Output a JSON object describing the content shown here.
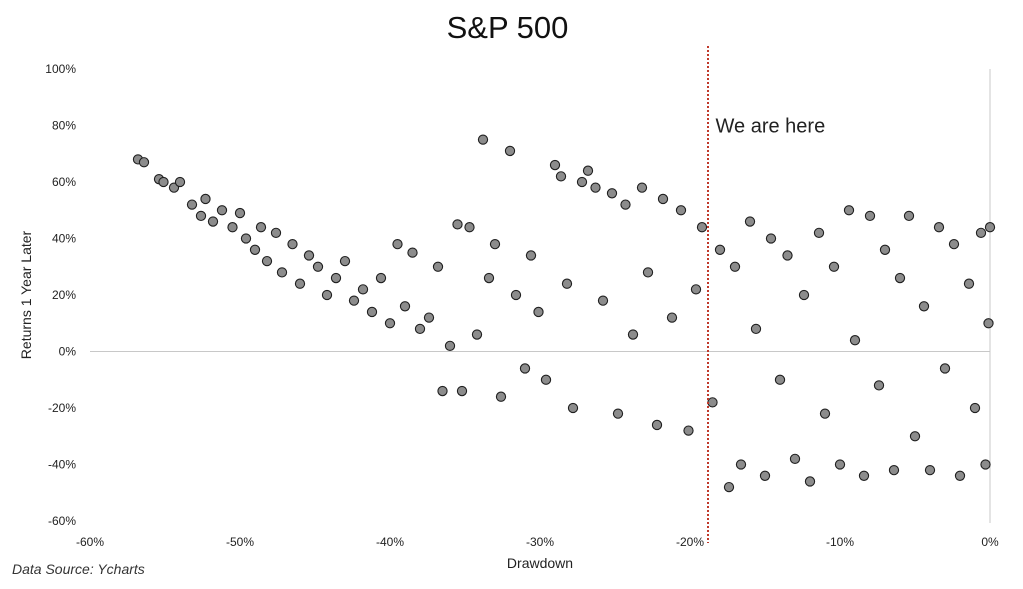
{
  "chart_data": {
    "type": "scatter",
    "title": "S&P 500",
    "xlabel": "Drawdown",
    "ylabel": "Returns 1 Year Later",
    "xlim": [
      -60,
      0
    ],
    "ylim": [
      -60,
      100
    ],
    "x_ticks": [
      "-60%",
      "-50%",
      "-40%",
      "-30%",
      "-20%",
      "-10%",
      "0%"
    ],
    "y_ticks": [
      "100%",
      "80%",
      "60%",
      "40%",
      "20%",
      "0%",
      "-20%",
      "-40%",
      "-60%"
    ],
    "x_tick_values": [
      -60,
      -50,
      -40,
      -30,
      -20,
      -10,
      0
    ],
    "y_tick_values": [
      100,
      80,
      60,
      40,
      20,
      0,
      -20,
      -40,
      -60
    ],
    "grid": false,
    "marker_color": "#8c8c8c",
    "marker_edge_color": "#1f1f1f",
    "reference_line": {
      "x": -18.8,
      "color": "#c0392b",
      "style": "dotted"
    },
    "annotation": {
      "text": "We are here",
      "x": -18.3,
      "y": 80
    },
    "series": [
      {
        "points": [
          [
            -56.8,
            68
          ],
          [
            -56.4,
            67
          ],
          [
            -55.4,
            61
          ],
          [
            -55.1,
            60
          ],
          [
            -54.4,
            58
          ],
          [
            -54.0,
            60
          ],
          [
            -53.2,
            52
          ],
          [
            -52.6,
            48
          ],
          [
            -52.3,
            54
          ],
          [
            -51.8,
            46
          ],
          [
            -51.2,
            50
          ],
          [
            -50.5,
            44
          ],
          [
            -50.0,
            49
          ],
          [
            -49.6,
            40
          ],
          [
            -49.0,
            36
          ],
          [
            -48.6,
            44
          ],
          [
            -48.2,
            32
          ],
          [
            -47.6,
            42
          ],
          [
            -47.2,
            28
          ],
          [
            -46.5,
            38
          ],
          [
            -46.0,
            24
          ],
          [
            -45.4,
            34
          ],
          [
            -44.8,
            30
          ],
          [
            -44.2,
            20
          ],
          [
            -43.6,
            26
          ],
          [
            -43.0,
            32
          ],
          [
            -42.4,
            18
          ],
          [
            -41.8,
            22
          ],
          [
            -41.2,
            14
          ],
          [
            -40.6,
            26
          ],
          [
            -40.0,
            10
          ],
          [
            -39.5,
            38
          ],
          [
            -39.0,
            16
          ],
          [
            -38.5,
            35
          ],
          [
            -38.0,
            8
          ],
          [
            -37.4,
            12
          ],
          [
            -36.8,
            30
          ],
          [
            -36.5,
            -14
          ],
          [
            -36.0,
            2
          ],
          [
            -35.5,
            45
          ],
          [
            -35.2,
            -14
          ],
          [
            -34.7,
            44
          ],
          [
            -34.2,
            6
          ],
          [
            -33.8,
            75
          ],
          [
            -33.4,
            26
          ],
          [
            -33.0,
            38
          ],
          [
            -32.6,
            -16
          ],
          [
            -32.0,
            71
          ],
          [
            -31.6,
            20
          ],
          [
            -31.0,
            -6
          ],
          [
            -30.6,
            34
          ],
          [
            -30.1,
            14
          ],
          [
            -29.6,
            -10
          ],
          [
            -29.0,
            66
          ],
          [
            -28.6,
            62
          ],
          [
            -28.2,
            24
          ],
          [
            -27.8,
            -20
          ],
          [
            -27.2,
            60
          ],
          [
            -26.8,
            64
          ],
          [
            -26.3,
            58
          ],
          [
            -25.8,
            18
          ],
          [
            -25.2,
            56
          ],
          [
            -24.8,
            -22
          ],
          [
            -24.3,
            52
          ],
          [
            -23.8,
            6
          ],
          [
            -23.2,
            58
          ],
          [
            -22.8,
            28
          ],
          [
            -22.2,
            -26
          ],
          [
            -21.8,
            54
          ],
          [
            -21.2,
            12
          ],
          [
            -20.6,
            50
          ],
          [
            -20.1,
            -28
          ],
          [
            -19.6,
            22
          ],
          [
            -19.2,
            44
          ],
          [
            -18.5,
            -18
          ],
          [
            -18.0,
            36
          ],
          [
            -17.4,
            -48
          ],
          [
            -17.0,
            30
          ],
          [
            -16.6,
            -40
          ],
          [
            -16.0,
            46
          ],
          [
            -15.6,
            8
          ],
          [
            -15.0,
            -44
          ],
          [
            -14.6,
            40
          ],
          [
            -14.0,
            -10
          ],
          [
            -13.5,
            34
          ],
          [
            -13.0,
            -38
          ],
          [
            -12.4,
            20
          ],
          [
            -12.0,
            -46
          ],
          [
            -11.4,
            42
          ],
          [
            -11.0,
            -22
          ],
          [
            -10.4,
            30
          ],
          [
            -10.0,
            -40
          ],
          [
            -9.4,
            50
          ],
          [
            -9.0,
            4
          ],
          [
            -8.4,
            -44
          ],
          [
            -8.0,
            48
          ],
          [
            -7.4,
            -12
          ],
          [
            -7.0,
            36
          ],
          [
            -6.4,
            -42
          ],
          [
            -6.0,
            26
          ],
          [
            -5.4,
            48
          ],
          [
            -5.0,
            -30
          ],
          [
            -4.4,
            16
          ],
          [
            -4.0,
            -42
          ],
          [
            -3.4,
            44
          ],
          [
            -3.0,
            -6
          ],
          [
            -2.4,
            38
          ],
          [
            -2.0,
            -44
          ],
          [
            -1.4,
            24
          ],
          [
            -1.0,
            -20
          ],
          [
            -0.6,
            42
          ],
          [
            -0.3,
            -40
          ],
          [
            -0.1,
            10
          ],
          [
            0.0,
            44
          ]
        ]
      }
    ]
  },
  "footer": {
    "source": "Data Source: Ycharts"
  }
}
